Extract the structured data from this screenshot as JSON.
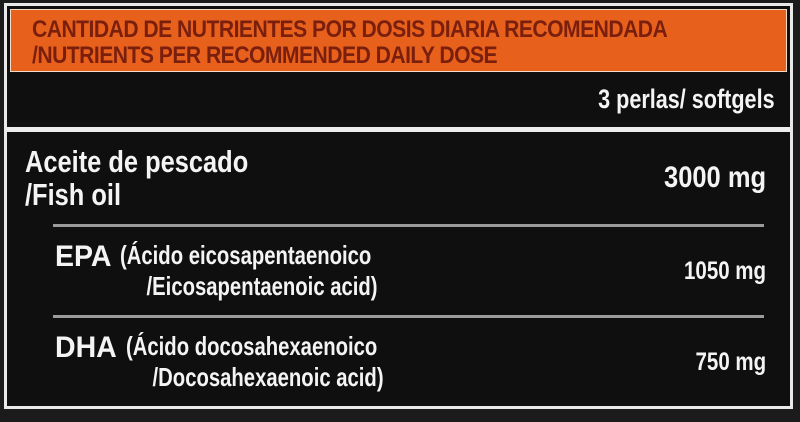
{
  "colors": {
    "accent": "#e8611c",
    "header_text": "#7a1f0e",
    "frame": "#e9e9e9",
    "panel_bg": "#0f0f0f",
    "divider_gray": "#9b9b9b",
    "text_white": "#f4f4f4"
  },
  "header": {
    "line1": "CANTIDAD DE NUTRIENTES POR DOSIS DIARIA RECOMENDADA",
    "line2": "/NUTRIENTS PER RECOMMENDED DAILY DOSE"
  },
  "serving": {
    "text": "3 perlas/ softgels"
  },
  "nutrients": [
    {
      "name_line1": "Aceite de pescado",
      "name_line2": "/Fish oil",
      "amount": "3000 mg"
    },
    {
      "acronym": "EPA",
      "detail_line1": "(Ácido eicosapentaenoico",
      "detail_line2": "/Eicosapentaenoic acid)",
      "amount": "1050 mg"
    },
    {
      "acronym": "DHA",
      "detail_line1": "(Ácido docosahexaenoico",
      "detail_line2": "/Docosahexaenoic acid)",
      "amount": "750 mg"
    }
  ]
}
